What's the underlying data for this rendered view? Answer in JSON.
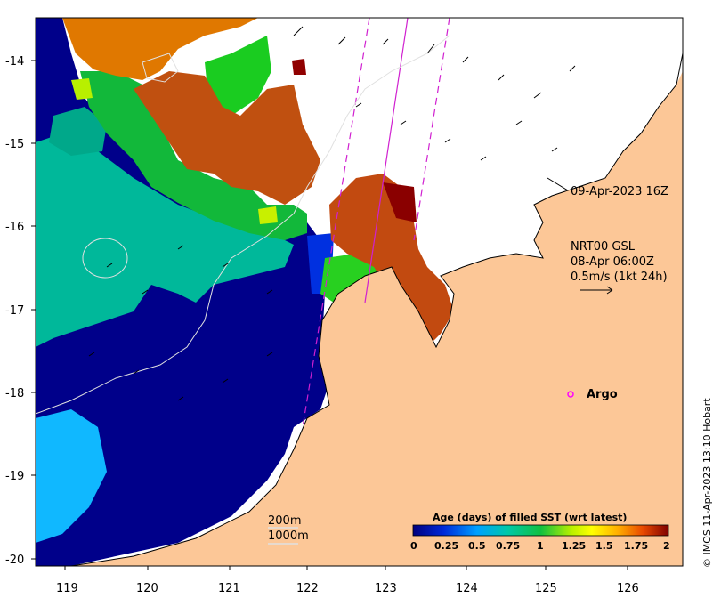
{
  "map": {
    "x_ticks": [
      "119",
      "120",
      "121",
      "122",
      "123",
      "124",
      "125",
      "126"
    ],
    "y_ticks": [
      "-14",
      "-15",
      "-16",
      "-17",
      "-18",
      "-19",
      "-20"
    ],
    "date_label": "09-Apr-2023 16Z",
    "current_info": {
      "line1": "NRT00 GSL",
      "line2": "08-Apr 06:00Z",
      "line3": "0.5m/s (1kt 24h)"
    },
    "argo_label": "Argo",
    "bathy_labels": {
      "contour1": "200m",
      "contour2": "1000m"
    },
    "colorbar": {
      "title": "Age (days) of filled SST (wrt latest)",
      "ticks": [
        "0",
        "0.25",
        "0.5",
        "0.75",
        "1",
        "1.25",
        "1.5",
        "1.75",
        "2"
      ]
    },
    "credit": "© IMOS 11-Apr-2023 13:10 Hobart",
    "colors": {
      "land": "#fcc797",
      "cloud": "#ffffff",
      "argo": "#ff00ff",
      "swath": "#d020d0"
    }
  }
}
